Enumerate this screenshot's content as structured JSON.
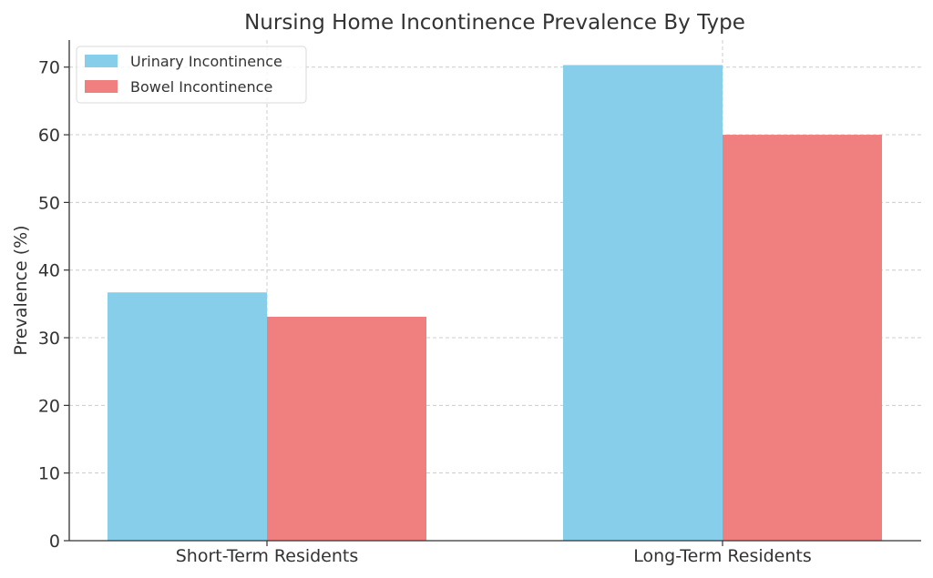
{
  "chart_data": {
    "type": "bar",
    "title": "Nursing Home Incontinence Prevalence By Type",
    "xlabel": "",
    "ylabel": "Prevalence (%)",
    "categories": [
      "Short-Term Residents",
      "Long-Term Residents"
    ],
    "series": [
      {
        "name": "Urinary Incontinence",
        "values": [
          36.7,
          70.3
        ],
        "color": "#87CEEB"
      },
      {
        "name": "Bowel Incontinence",
        "values": [
          33.1,
          60.0
        ],
        "color": "#F08080"
      }
    ],
    "ylim": [
      0,
      74
    ],
    "yticks": [
      0,
      10,
      20,
      30,
      40,
      50,
      60,
      70
    ],
    "grid": true,
    "legend_position": "top-left"
  }
}
